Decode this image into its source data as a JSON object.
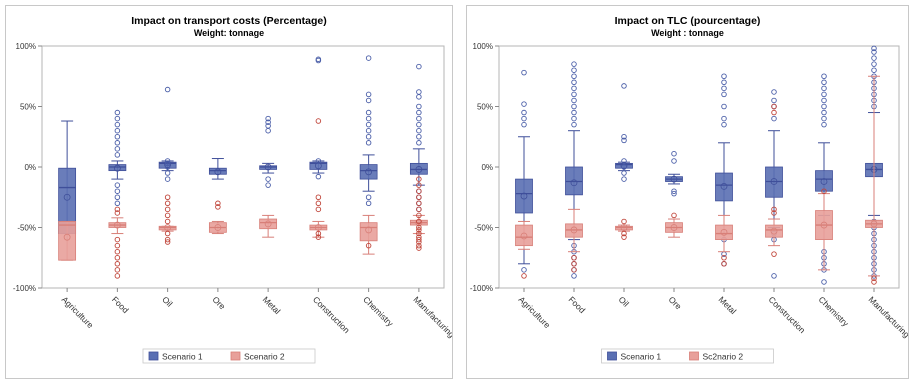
{
  "chart_data": [
    {
      "type": "box",
      "title": "Impact on transport costs (Percentage)",
      "subtitle": "Weight: tonnage",
      "yticks": [
        "100%",
        "50%",
        "0%",
        "-50%",
        "-100%"
      ],
      "ylim": [
        -100,
        100
      ],
      "categories": [
        "Agriculture",
        "Food",
        "Oil",
        "Ore",
        "Metal",
        "Construction",
        "Chemistry",
        "Manufacturing"
      ],
      "legend": [
        "Scenario 1",
        "Scenario 2"
      ],
      "legend_position": "bottom",
      "series": [
        {
          "name": "Scenario 1",
          "color": "#5a6fb3",
          "boxes": [
            {
              "q1": -55,
              "median": -17,
              "q3": -1,
              "mean": -25,
              "wlow": -55,
              "whigh": 38,
              "outliers": []
            },
            {
              "q1": -3,
              "median": 0,
              "q3": 2,
              "mean": -1,
              "wlow": -10,
              "whigh": 5,
              "outliers": [
                45,
                40,
                35,
                30,
                25,
                20,
                15,
                10,
                -15,
                -20,
                -25,
                -30
              ]
            },
            {
              "q1": -1,
              "median": 3,
              "q3": 4,
              "mean": 2,
              "wlow": -3,
              "whigh": 5,
              "outliers": [
                64,
                5,
                3,
                0,
                -5,
                -10
              ]
            },
            {
              "q1": -6,
              "median": -3,
              "q3": -1,
              "mean": -4,
              "wlow": -10,
              "whigh": 7,
              "outliers": []
            },
            {
              "q1": -2,
              "median": 0,
              "q3": 1,
              "mean": 0,
              "wlow": -5,
              "whigh": 3,
              "outliers": [
                40,
                37,
                34,
                30,
                -10,
                -15
              ]
            },
            {
              "q1": -2,
              "median": 3,
              "q3": 4,
              "mean": 1,
              "wlow": -5,
              "whigh": 5,
              "outliers": [
                89,
                88,
                5,
                -8
              ]
            },
            {
              "q1": -10,
              "median": -3,
              "q3": 2,
              "mean": -4,
              "wlow": -20,
              "whigh": 10,
              "outliers": [
                90,
                60,
                55,
                45,
                40,
                35,
                30,
                25,
                20,
                -25,
                -30
              ]
            },
            {
              "q1": -6,
              "median": -2,
              "q3": 3,
              "mean": -2,
              "wlow": -15,
              "whigh": 15,
              "outliers": [
                83,
                62,
                58,
                50,
                45,
                40,
                35,
                30,
                25,
                20,
                -20,
                -25,
                -30,
                -35
              ]
            }
          ]
        },
        {
          "name": "Scenario 2",
          "color": "#e8a09a",
          "boxes": [
            {
              "q1": -77,
              "median": -48,
              "q3": -45,
              "mean": -58,
              "wlow": -77,
              "whigh": -45,
              "outliers": []
            },
            {
              "q1": -50,
              "median": -48,
              "q3": -46,
              "mean": -48,
              "wlow": -55,
              "whigh": -42,
              "outliers": [
                -60,
                -65,
                -70,
                -75,
                -80,
                -85,
                -90,
                -38,
                -35
              ]
            },
            {
              "q1": -52,
              "median": -50,
              "q3": -49,
              "mean": -50,
              "wlow": -53,
              "whigh": -49,
              "outliers": [
                -25,
                -30,
                -35,
                -40,
                -45,
                -55,
                -60,
                -62
              ]
            },
            {
              "q1": -54,
              "median": -50,
              "q3": -46,
              "mean": -50,
              "wlow": -55,
              "whigh": -45,
              "outliers": [
                -30,
                -33
              ]
            },
            {
              "q1": -51,
              "median": -46,
              "q3": -43,
              "mean": -47,
              "wlow": -58,
              "whigh": -40,
              "outliers": []
            },
            {
              "q1": -52,
              "median": -50,
              "q3": -48,
              "mean": -50,
              "wlow": -58,
              "whigh": -45,
              "outliers": [
                38,
                -25,
                -30,
                -35,
                -55,
                -58
              ]
            },
            {
              "q1": -61,
              "median": -50,
              "q3": -46,
              "mean": -52,
              "wlow": -72,
              "whigh": -40,
              "outliers": [
                -65
              ]
            },
            {
              "q1": -48,
              "median": -46,
              "q3": -44,
              "mean": -46,
              "wlow": -55,
              "whigh": -40,
              "outliers": [
                -50,
                -52,
                -55,
                -58,
                -60,
                -62,
                -65,
                -67,
                -45,
                -40,
                -35,
                -30,
                -25,
                -20,
                -15,
                -10
              ]
            }
          ]
        }
      ]
    },
    {
      "type": "box",
      "title": "Impact on TLC (pourcentage)",
      "subtitle": "Weight : tonnage",
      "yticks": [
        "100%",
        "50%",
        "0%",
        "-50%",
        "-100%"
      ],
      "ylim": [
        -100,
        100
      ],
      "categories": [
        "Agriculture",
        "Food",
        "Oil",
        "Ore",
        "Metal",
        "Construction",
        "Chemistry",
        "Manufacturing"
      ],
      "legend": [
        "Scenario 1",
        "Sc2nario 2"
      ],
      "legend_position": "bottom",
      "series": [
        {
          "name": "Scenario 1",
          "color": "#5a6fb3",
          "boxes": [
            {
              "q1": -38,
              "median": -22,
              "q3": -10,
              "mean": -24,
              "wlow": -80,
              "whigh": 25,
              "outliers": [
                78,
                52,
                45,
                40,
                35,
                -85
              ]
            },
            {
              "q1": -23,
              "median": -12,
              "q3": 0,
              "mean": -13,
              "wlow": -60,
              "whigh": 30,
              "outliers": [
                85,
                80,
                75,
                70,
                65,
                60,
                55,
                50,
                45,
                40,
                35,
                -65,
                -70,
                -75,
                -80,
                -85,
                -90
              ]
            },
            {
              "q1": -1,
              "median": 2,
              "q3": 3,
              "mean": 1,
              "wlow": -3,
              "whigh": 4,
              "outliers": [
                67,
                25,
                22,
                5,
                0,
                -5,
                -10
              ]
            },
            {
              "q1": -12,
              "median": -10,
              "q3": -8,
              "mean": -10,
              "wlow": -14,
              "whigh": -6,
              "outliers": [
                11,
                5,
                -20,
                -22
              ]
            },
            {
              "q1": -28,
              "median": -15,
              "q3": -5,
              "mean": -16,
              "wlow": -55,
              "whigh": 20,
              "outliers": [
                75,
                70,
                65,
                60,
                50,
                40,
                35,
                -60,
                -72,
                -80
              ]
            },
            {
              "q1": -25,
              "median": -12,
              "q3": 0,
              "mean": -12,
              "wlow": -50,
              "whigh": 30,
              "outliers": [
                62,
                55,
                50,
                40,
                -55,
                -60,
                -90
              ]
            },
            {
              "q1": -20,
              "median": -10,
              "q3": -3,
              "mean": -12,
              "wlow": -40,
              "whigh": 20,
              "outliers": [
                75,
                70,
                65,
                60,
                55,
                50,
                45,
                40,
                35,
                -70,
                -75,
                -80,
                -85,
                -95
              ]
            },
            {
              "q1": -8,
              "median": -2,
              "q3": 3,
              "mean": -2,
              "wlow": -40,
              "whigh": 45,
              "outliers": [
                98,
                95,
                90,
                85,
                80,
                75,
                70,
                65,
                60,
                55,
                50,
                -45,
                -50,
                -55,
                -60,
                -65,
                -70,
                -75,
                -80,
                -85,
                -90
              ]
            }
          ]
        },
        {
          "name": "Sc2nario 2",
          "color": "#e8a09a",
          "boxes": [
            {
              "q1": -65,
              "median": -58,
              "q3": -48,
              "mean": -57,
              "wlow": -68,
              "whigh": -45,
              "outliers": [
                -90
              ]
            },
            {
              "q1": -58,
              "median": -52,
              "q3": -47,
              "mean": -52,
              "wlow": -70,
              "whigh": -35,
              "outliers": [
                -75,
                -80,
                -85
              ]
            },
            {
              "q1": -52,
              "median": -50,
              "q3": -49,
              "mean": -50,
              "wlow": -53,
              "whigh": -48,
              "outliers": [
                -45,
                -55,
                -58
              ]
            },
            {
              "q1": -54,
              "median": -50,
              "q3": -46,
              "mean": -50,
              "wlow": -58,
              "whigh": -43,
              "outliers": [
                -40
              ]
            },
            {
              "q1": -60,
              "median": -55,
              "q3": -48,
              "mean": -54,
              "wlow": -70,
              "whigh": -40,
              "outliers": [
                -75,
                -80
              ]
            },
            {
              "q1": -58,
              "median": -52,
              "q3": -48,
              "mean": -53,
              "wlow": -65,
              "whigh": -43,
              "outliers": [
                50,
                45,
                -38,
                -35,
                -72
              ]
            },
            {
              "q1": -60,
              "median": -48,
              "q3": -36,
              "mean": -48,
              "wlow": -85,
              "whigh": -22,
              "outliers": [
                -20
              ]
            },
            {
              "q1": -50,
              "median": -47,
              "q3": -44,
              "mean": -47,
              "wlow": -90,
              "whigh": 75,
              "outliers": [
                -92,
                -95
              ]
            }
          ]
        }
      ]
    }
  ]
}
